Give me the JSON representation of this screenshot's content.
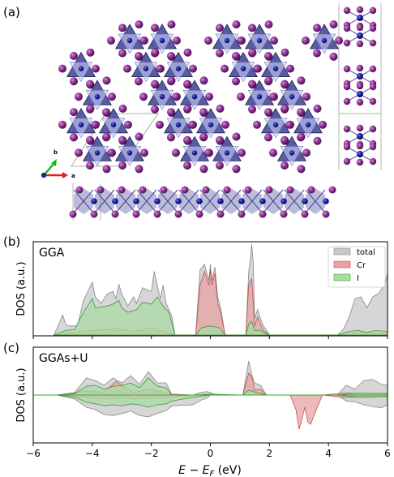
{
  "figure": {
    "panels": {
      "a": {
        "tag": "(a)",
        "axis_b": "b",
        "axis_a": "a"
      },
      "b": {
        "tag": "(b)",
        "method": "GGA"
      },
      "c": {
        "tag": "(c)",
        "method": "GGAs+U"
      }
    },
    "ylabel": "DOS (a.u.)",
    "xlabel": "E − E_F (eV)",
    "xlim": [
      -6,
      6
    ],
    "xticks": [
      "−6",
      "−4",
      "−2",
      "0",
      "2",
      "4",
      "6"
    ],
    "legend": {
      "total": "total",
      "cr": "Cr",
      "i": "I"
    },
    "colors": {
      "total_fill": "#c8c8c8",
      "total_line": "#888888",
      "cr_fill": "#e7a3a3",
      "cr_line": "#c45050",
      "i_fill": "#a9dba4",
      "i_line": "#3c9a3c",
      "cr_atom": "#151a8c",
      "i_atom": "#7a2a84",
      "octa": "#3a3f93"
    }
  },
  "chart_data": [
    {
      "type": "area",
      "panel": "b",
      "title": "GGA",
      "ylabel": "DOS (a.u.)",
      "xlim": [
        -6,
        6
      ],
      "series": [
        {
          "name": "total",
          "color": "#c8c8c8",
          "x": [
            -5.3,
            -5.0,
            -4.9,
            -4.8,
            -4.5,
            -4.3,
            -4.0,
            -3.9,
            -3.7,
            -3.5,
            -3.3,
            -3.2,
            -3.1,
            -3.0,
            -2.8,
            -2.6,
            -2.5,
            -2.3,
            -2.0,
            -1.9,
            -1.7,
            -1.6,
            -1.5,
            -1.3,
            -1.2,
            -0.5,
            -0.35,
            -0.2,
            -0.05,
            0.0,
            0.05,
            0.15,
            0.25,
            0.35,
            0.5,
            0.8,
            1.2,
            1.3,
            1.35,
            1.4,
            1.45,
            1.5,
            1.6,
            1.7,
            1.8,
            2.0,
            4.3,
            4.5,
            4.7,
            4.9,
            5.1,
            5.3,
            5.5,
            5.7,
            5.9,
            6.0
          ],
          "y": [
            0.0,
            0.22,
            0.12,
            0.1,
            0.1,
            0.38,
            0.58,
            0.42,
            0.35,
            0.45,
            0.48,
            0.4,
            0.56,
            0.45,
            0.32,
            0.42,
            0.35,
            0.52,
            0.48,
            0.7,
            0.4,
            0.55,
            0.35,
            0.2,
            0.0,
            0.0,
            0.72,
            0.78,
            0.6,
            0.78,
            0.6,
            0.75,
            0.42,
            0.3,
            0.0,
            0.0,
            0.0,
            0.7,
            0.82,
            1.0,
            0.8,
            0.18,
            0.28,
            0.18,
            0.1,
            0.0,
            0.0,
            0.06,
            0.2,
            0.4,
            0.42,
            0.3,
            0.42,
            0.46,
            0.55,
            0.68
          ]
        },
        {
          "name": "Cr",
          "color": "#e7a3a3",
          "x": [
            -5.3,
            -4.0,
            -3.2,
            -2.6,
            -2.0,
            -1.2,
            -0.5,
            -0.35,
            -0.2,
            -0.05,
            0.0,
            0.05,
            0.15,
            0.25,
            0.35,
            0.5,
            1.2,
            1.3,
            1.4,
            1.5,
            1.6,
            1.7,
            1.8,
            2.0,
            4.3,
            5.0,
            6.0
          ],
          "y": [
            0.0,
            0.05,
            0.07,
            0.04,
            0.08,
            0.0,
            0.0,
            0.55,
            0.7,
            0.55,
            0.72,
            0.55,
            0.68,
            0.35,
            0.25,
            0.0,
            0.0,
            0.55,
            0.62,
            0.1,
            0.2,
            0.12,
            0.05,
            0.0,
            0.0,
            0.03,
            0.02
          ]
        },
        {
          "name": "I",
          "color": "#a9dba4",
          "x": [
            -5.3,
            -4.9,
            -4.6,
            -4.3,
            -4.0,
            -3.9,
            -3.5,
            -3.3,
            -3.1,
            -3.0,
            -2.8,
            -2.5,
            -2.3,
            -2.0,
            -1.8,
            -1.6,
            -1.4,
            -1.2,
            -0.5,
            -0.3,
            0.0,
            0.3,
            0.5,
            1.2,
            1.3,
            1.4,
            1.5,
            1.7,
            1.8,
            2.0,
            4.3,
            4.7,
            5.0,
            5.3,
            5.6,
            6.0
          ],
          "y": [
            0.0,
            0.05,
            0.06,
            0.25,
            0.4,
            0.3,
            0.32,
            0.34,
            0.38,
            0.3,
            0.25,
            0.28,
            0.36,
            0.34,
            0.42,
            0.32,
            0.25,
            0.0,
            0.0,
            0.08,
            0.1,
            0.08,
            0.0,
            0.0,
            0.12,
            0.15,
            0.05,
            0.05,
            0.03,
            0.0,
            0.0,
            0.04,
            0.05,
            0.03,
            0.05,
            0.04
          ]
        }
      ]
    },
    {
      "type": "area",
      "panel": "c",
      "title": "GGAs+U",
      "ylabel": "DOS (a.u.)",
      "xlim": [
        -6,
        6
      ],
      "series": [
        {
          "name": "total",
          "color": "#c8c8c8",
          "x": [
            -5.2,
            -4.6,
            -4.2,
            -3.9,
            -3.6,
            -3.3,
            -3.0,
            -2.7,
            -2.4,
            -2.1,
            -1.8,
            -1.5,
            -1.3,
            -0.6,
            -0.3,
            -0.1,
            0.0,
            0.2,
            1.1,
            1.3,
            1.4,
            1.5,
            1.7,
            1.9,
            4.3,
            4.6,
            4.9,
            5.2,
            5.5,
            5.8,
            6.0
          ],
          "y_up": [
            0.0,
            0.05,
            0.35,
            0.3,
            0.2,
            0.35,
            0.25,
            0.4,
            0.22,
            0.48,
            0.25,
            0.25,
            0.0,
            0.0,
            0.06,
            0.07,
            0.05,
            0.0,
            0.0,
            0.7,
            0.42,
            0.25,
            0.2,
            0.0,
            0.0,
            0.2,
            0.12,
            0.3,
            0.32,
            0.22,
            0.2
          ],
          "y_down": [
            0.0,
            -0.08,
            -0.25,
            -0.3,
            -0.4,
            -0.42,
            -0.38,
            -0.33,
            -0.42,
            -0.45,
            -0.38,
            -0.32,
            -0.22,
            -0.2,
            -0.1,
            -0.06,
            0.0,
            0.0,
            0.0,
            0.0,
            0.0,
            0.0,
            0.0,
            0.0,
            0.0,
            -0.12,
            -0.14,
            -0.2,
            -0.24,
            -0.26,
            -0.2
          ]
        },
        {
          "name": "Cr",
          "color": "#e7a3a3",
          "x": [
            -5.2,
            -4.2,
            -3.6,
            -3.2,
            -3.0,
            -2.6,
            -2.1,
            -1.6,
            -1.3,
            -0.6,
            1.1,
            1.3,
            1.4,
            1.5,
            1.7,
            1.9,
            2.7,
            2.9,
            3.0,
            3.1,
            3.2,
            3.3,
            3.4,
            3.6,
            3.8,
            4.5,
            5.5,
            6.0
          ],
          "y_up": [
            0.0,
            0.08,
            0.06,
            0.28,
            0.2,
            0.05,
            0.12,
            0.06,
            0.02,
            0.0,
            0.0,
            0.45,
            0.38,
            0.1,
            0.12,
            0.0,
            0.0,
            0.0,
            0.0,
            0.0,
            0.0,
            0.0,
            0.0,
            0.0,
            0.0,
            0.04,
            0.03,
            0.03
          ],
          "y_down": [
            0.0,
            -0.05,
            -0.08,
            -0.06,
            -0.05,
            -0.08,
            -0.06,
            -0.05,
            -0.04,
            0.0,
            0.0,
            0.0,
            0.0,
            0.0,
            0.0,
            0.0,
            0.0,
            -0.3,
            -0.7,
            -0.5,
            -0.25,
            -0.55,
            -0.6,
            -0.28,
            0.0,
            -0.05,
            -0.04,
            -0.03
          ]
        },
        {
          "name": "I",
          "color": "#a9dba4",
          "x": [
            -5.2,
            -4.6,
            -4.2,
            -3.9,
            -3.6,
            -3.3,
            -3.0,
            -2.7,
            -2.4,
            -2.1,
            -1.8,
            -1.5,
            -1.3,
            -0.6,
            0.0,
            1.1,
            1.3,
            1.4,
            1.9,
            4.3,
            5.0,
            6.0
          ],
          "y_up": [
            0.0,
            0.03,
            0.18,
            0.2,
            0.12,
            0.18,
            0.2,
            0.25,
            0.15,
            0.35,
            0.18,
            0.15,
            0.0,
            0.0,
            0.02,
            0.0,
            0.1,
            0.08,
            0.0,
            0.0,
            0.04,
            0.03
          ],
          "y_down": [
            0.0,
            -0.04,
            -0.15,
            -0.18,
            -0.22,
            -0.2,
            -0.22,
            -0.18,
            -0.2,
            -0.25,
            -0.2,
            -0.18,
            -0.12,
            -0.05,
            0.0,
            0.0,
            0.0,
            0.0,
            0.0,
            0.0,
            -0.04,
            -0.03
          ]
        }
      ]
    }
  ]
}
